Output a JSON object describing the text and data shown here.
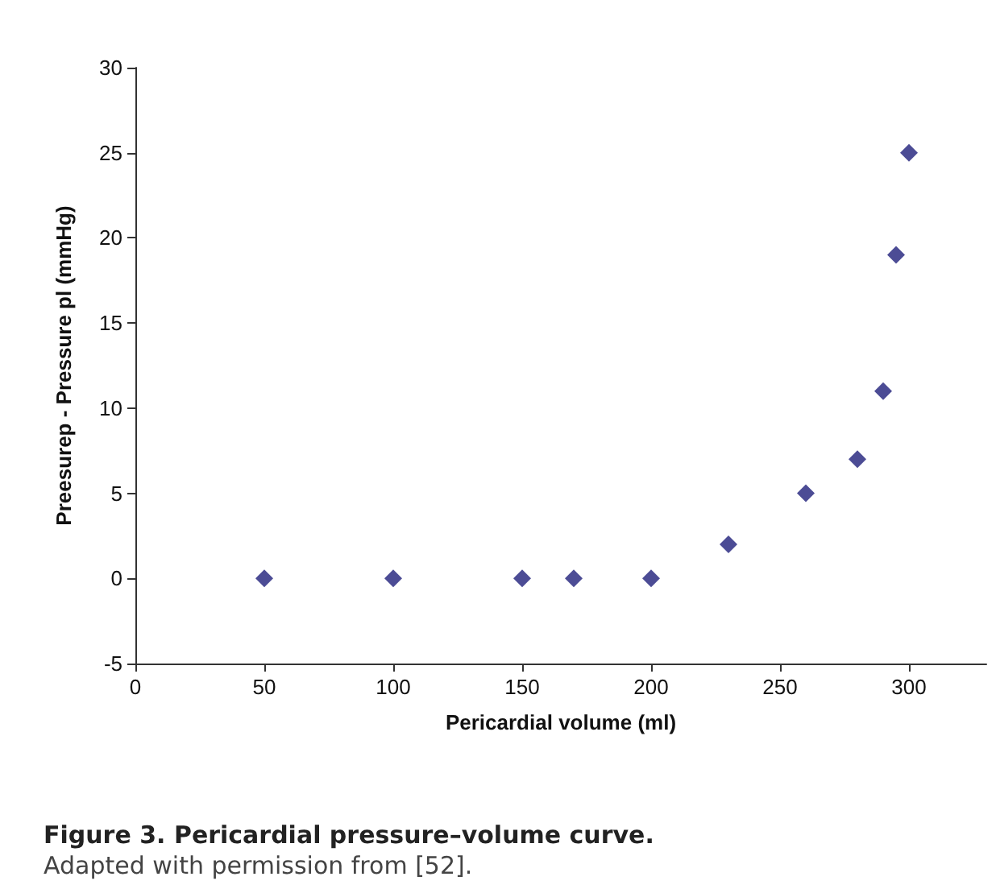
{
  "chart_data": {
    "type": "scatter",
    "title": "Figure 3. Pericardial pressure–volume curve.",
    "subtitle": "Adapted with permission from [52].",
    "xlabel": "Pericardial volume (ml)",
    "ylabel": "Preesurep - Pressure pl (mmHg)",
    "x": [
      50,
      100,
      150,
      170,
      200,
      230,
      260,
      280,
      290,
      295,
      300
    ],
    "series": [
      {
        "color": "#1f1f7a",
        "values": [
          0,
          0,
          0,
          0,
          0,
          2,
          5,
          7,
          11,
          19,
          25
        ]
      }
    ],
    "xlim": [
      0,
      330
    ],
    "xticks": [
      0,
      50,
      100,
      150,
      200,
      250,
      300
    ],
    "ylim": [
      -5,
      30
    ],
    "yticks": [
      -5,
      0,
      5,
      10,
      15,
      20,
      25,
      30
    ],
    "grid": false,
    "marker": "diamond"
  }
}
